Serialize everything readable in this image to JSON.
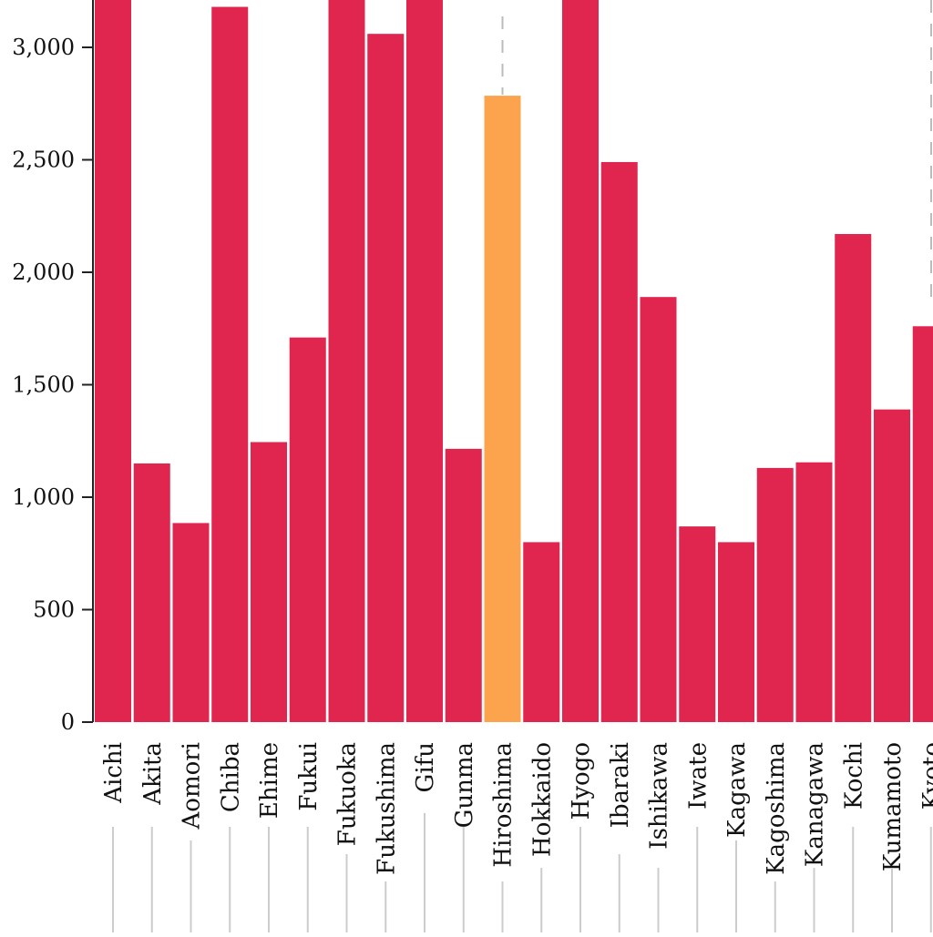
{
  "chart_data": {
    "type": "bar",
    "title": "",
    "xlabel": "",
    "ylabel": "",
    "ylim": [
      0,
      3200
    ],
    "yticks": [
      0,
      500,
      1000,
      1500,
      2000,
      2500,
      3000
    ],
    "ytick_labels": [
      "0",
      "500",
      "1,000",
      "1,500",
      "2,000",
      "2,500",
      "3,000"
    ],
    "categories": [
      "Aichi",
      "Akita",
      "Aomori",
      "Chiba",
      "Ehime",
      "Fukui",
      "Fukuoka",
      "Fukushima",
      "Gifu",
      "Gunma",
      "Hiroshima",
      "Hokkaido",
      "Hyogo",
      "Ibaraki",
      "Ishikawa",
      "Iwate",
      "Kagawa",
      "Kagoshima",
      "Kanagawa",
      "Kochi",
      "Kumamoto",
      "Kyoto"
    ],
    "values": [
      3300,
      1150,
      885,
      3180,
      1245,
      1710,
      3300,
      3060,
      3300,
      1215,
      2785,
      800,
      3300,
      2490,
      1890,
      870,
      800,
      1130,
      1155,
      2170,
      1390,
      1760
    ],
    "highlight": "Hiroshima",
    "colors": {
      "bar": "#e0254f",
      "highlight": "#fca44d",
      "axis": "#222222",
      "guide": "#bbbbbb",
      "label_line": "#cccccc"
    },
    "reference_lines": [
      2790,
      3200
    ]
  }
}
